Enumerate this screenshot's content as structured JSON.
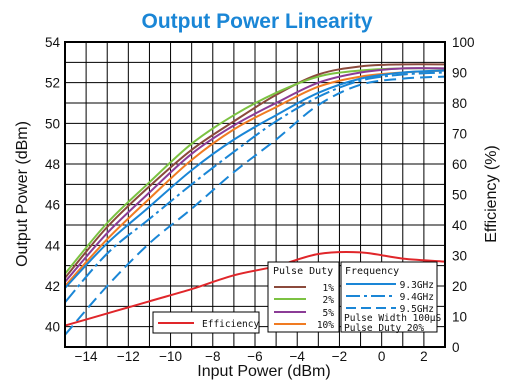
{
  "chart_data": {
    "type": "line",
    "title": "Output Power Linearity",
    "xlabel": "Input Power (dBm)",
    "ylabel": "Output Power (dBm)",
    "y2label": "Efficiency (%)",
    "xlim": [
      -15,
      3
    ],
    "ylim": [
      39,
      54
    ],
    "y2lim": [
      0,
      100
    ],
    "grid": true,
    "x_ticks": [
      -14,
      -12,
      -10,
      -8,
      -6,
      -4,
      -2,
      0,
      2
    ],
    "y_ticks": [
      40,
      42,
      44,
      46,
      48,
      50,
      52,
      54
    ],
    "y2_ticks": [
      0,
      10,
      20,
      30,
      40,
      50,
      60,
      70,
      80,
      90,
      100
    ],
    "x": [
      -15,
      -13,
      -11,
      -9,
      -7,
      -5,
      -3,
      -1,
      1,
      3
    ],
    "series": [
      {
        "group": "Pulse Duty",
        "name": "1%",
        "color": "#8b4a3c",
        "dash": "solid",
        "axis": "left",
        "values": [
          42.4,
          44.9,
          46.9,
          48.7,
          50.1,
          51.4,
          52.4,
          52.8,
          52.9,
          52.9
        ]
      },
      {
        "group": "Pulse Duty",
        "name": "2%",
        "color": "#7cc242",
        "dash": "solid",
        "axis": "left",
        "values": [
          42.6,
          45.1,
          47.1,
          49.0,
          50.4,
          51.5,
          52.3,
          52.6,
          52.7,
          52.7
        ]
      },
      {
        "group": "Pulse Duty",
        "name": "5%",
        "color": "#8b3c96",
        "dash": "solid",
        "axis": "left",
        "values": [
          42.2,
          44.6,
          46.6,
          48.5,
          49.9,
          51.0,
          52.0,
          52.5,
          52.7,
          52.7
        ]
      },
      {
        "group": "Pulse Duty",
        "name": "10%",
        "color": "#f07b22",
        "dash": "solid",
        "axis": "left",
        "values": [
          42.0,
          44.3,
          46.3,
          48.2,
          49.7,
          50.8,
          51.8,
          52.3,
          52.5,
          52.6
        ]
      },
      {
        "group": "Frequency",
        "name": "9.3GHz",
        "color": "#1a86d6",
        "dash": "solid",
        "axis": "left",
        "values": [
          41.9,
          44.1,
          45.9,
          47.7,
          49.2,
          50.4,
          51.5,
          52.2,
          52.5,
          52.6
        ]
      },
      {
        "group": "Frequency",
        "name": "9.4GHz",
        "color": "#1a86d6",
        "dash": "dashdot",
        "axis": "left",
        "values": [
          41.2,
          43.6,
          45.3,
          47.0,
          48.6,
          50.1,
          51.3,
          52.1,
          52.4,
          52.5
        ]
      },
      {
        "group": "Frequency",
        "name": "9.5GHz",
        "color": "#1a86d6",
        "dash": "dashed",
        "axis": "left",
        "values": [
          39.6,
          42.0,
          44.1,
          45.8,
          47.6,
          49.2,
          50.9,
          51.9,
          52.2,
          52.3
        ]
      },
      {
        "group": "",
        "name": "Efficiency",
        "color": "#e0262a",
        "dash": "solid",
        "axis": "right",
        "values": [
          7.0,
          11.0,
          15.0,
          19.0,
          23.5,
          26.5,
          30.5,
          31.0,
          29.0,
          28.0
        ]
      }
    ],
    "legend": {
      "efficiency_label": "Efficiency",
      "duty_title": "Pulse Duty",
      "duty_items": [
        "1%",
        "2%",
        "5%",
        "10%"
      ],
      "freq_title": "Frequency",
      "freq_items": [
        "9.3GHz",
        "9.4GHz",
        "9.5GHz"
      ],
      "note_1": "Pulse Width 100μS",
      "note_2": "Pulse Duty  20%"
    }
  }
}
